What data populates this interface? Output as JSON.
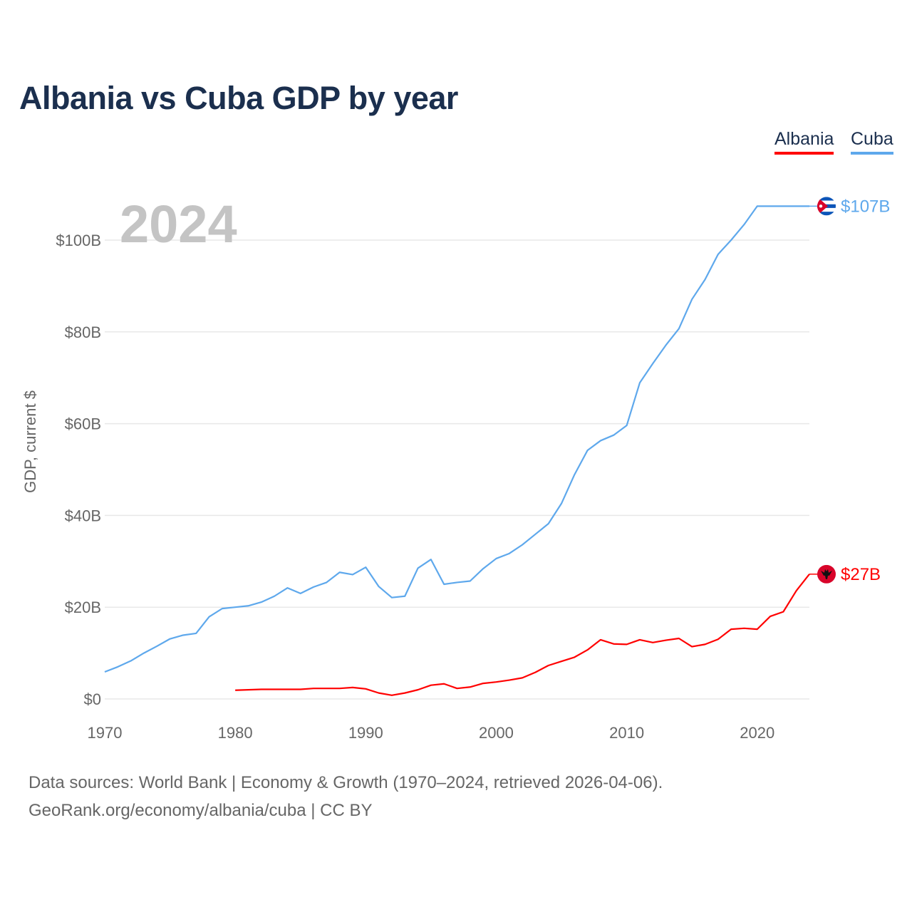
{
  "title": "Albania vs Cuba GDP by year",
  "legend": [
    {
      "label": "Albania",
      "color": "#ff0000"
    },
    {
      "label": "Cuba",
      "color": "#5ea8ec"
    }
  ],
  "chart_data": {
    "type": "line",
    "title": "Albania vs Cuba GDP by year",
    "year_label": "2024",
    "xlabel": "",
    "ylabel": "GDP, current $",
    "xlim": [
      1970,
      2024
    ],
    "ylim": [
      0,
      110
    ],
    "x_ticks": [
      1970,
      1980,
      1990,
      2000,
      2010,
      2020
    ],
    "y_ticks": [
      {
        "v": 0,
        "label": "$0"
      },
      {
        "v": 20,
        "label": "$20B"
      },
      {
        "v": 40,
        "label": "$40B"
      },
      {
        "v": 60,
        "label": "$60B"
      },
      {
        "v": 80,
        "label": "$80B"
      },
      {
        "v": 100,
        "label": "$100B"
      }
    ],
    "grid": true,
    "series": [
      {
        "name": "Cuba",
        "color": "#5ea8ec",
        "flag": "cuba-flag",
        "end_label": "$107B",
        "start": 1970,
        "values": [
          5.9,
          7.0,
          8.3,
          10.0,
          11.5,
          13.1,
          13.9,
          14.3,
          17.9,
          19.7,
          20.0,
          20.3,
          21.1,
          22.4,
          24.2,
          23.0,
          24.4,
          25.4,
          27.6,
          27.1,
          28.7,
          24.5,
          22.1,
          22.4,
          28.5,
          30.4,
          25.0,
          25.4,
          25.7,
          28.4,
          30.6,
          31.7,
          33.6,
          35.9,
          38.2,
          42.6,
          48.9,
          54.2,
          56.3,
          57.5,
          59.6,
          68.9,
          73.1,
          77.1,
          80.7,
          87.1,
          91.4,
          96.9,
          100.0,
          103.4,
          107.4
        ]
      },
      {
        "name": "Albania",
        "color": "#ff0000",
        "flag": "albania-flag",
        "end_label": "$27B",
        "start": 1980,
        "values": [
          1.9,
          2.0,
          2.1,
          2.1,
          2.1,
          2.1,
          2.3,
          2.3,
          2.3,
          2.5,
          2.2,
          1.3,
          0.8,
          1.3,
          2.0,
          3.0,
          3.3,
          2.3,
          2.6,
          3.4,
          3.7,
          4.1,
          4.6,
          5.8,
          7.3,
          8.2,
          9.1,
          10.7,
          12.9,
          12.0,
          11.9,
          12.9,
          12.3,
          12.8,
          13.2,
          11.4,
          11.9,
          13.0,
          15.2,
          15.4,
          15.2,
          18.0,
          19.0,
          23.6,
          27.2
        ]
      }
    ]
  },
  "footer": {
    "line1": "Data sources: World Bank | Economy & Growth (1970–2024, retrieved 2026-04-06).",
    "line2": "GeoRank.org/economy/albania/cuba | CC BY"
  }
}
